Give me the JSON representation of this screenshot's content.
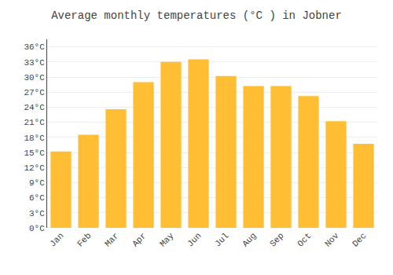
{
  "chart_data": {
    "type": "bar",
    "title": "Average monthly temperatures (°C ) in Jobner",
    "categories": [
      "Jan",
      "Feb",
      "Mar",
      "Apr",
      "May",
      "Jun",
      "Jul",
      "Aug",
      "Sep",
      "Oct",
      "Nov",
      "Dec"
    ],
    "values": [
      15.2,
      18.5,
      23.6,
      29.0,
      33.0,
      33.5,
      30.2,
      28.2,
      28.2,
      26.2,
      21.2,
      16.7
    ],
    "color": "#FFBE33",
    "ylim": [
      0,
      37.5
    ],
    "yticks": [
      {
        "value": 0,
        "label": "0°C"
      },
      {
        "value": 3,
        "label": "3°C"
      },
      {
        "value": 6,
        "label": "6°C"
      },
      {
        "value": 9,
        "label": "9°C"
      },
      {
        "value": 12,
        "label": "12°C"
      },
      {
        "value": 15,
        "label": "15°C"
      },
      {
        "value": 18,
        "label": "18°C"
      },
      {
        "value": 21,
        "label": "21°C"
      },
      {
        "value": 24,
        "label": "24°C"
      },
      {
        "value": 27,
        "label": "27°C"
      },
      {
        "value": 30,
        "label": "30°C"
      },
      {
        "value": 33,
        "label": "33°C"
      },
      {
        "value": 36,
        "label": "36°C"
      }
    ],
    "grid": true
  }
}
